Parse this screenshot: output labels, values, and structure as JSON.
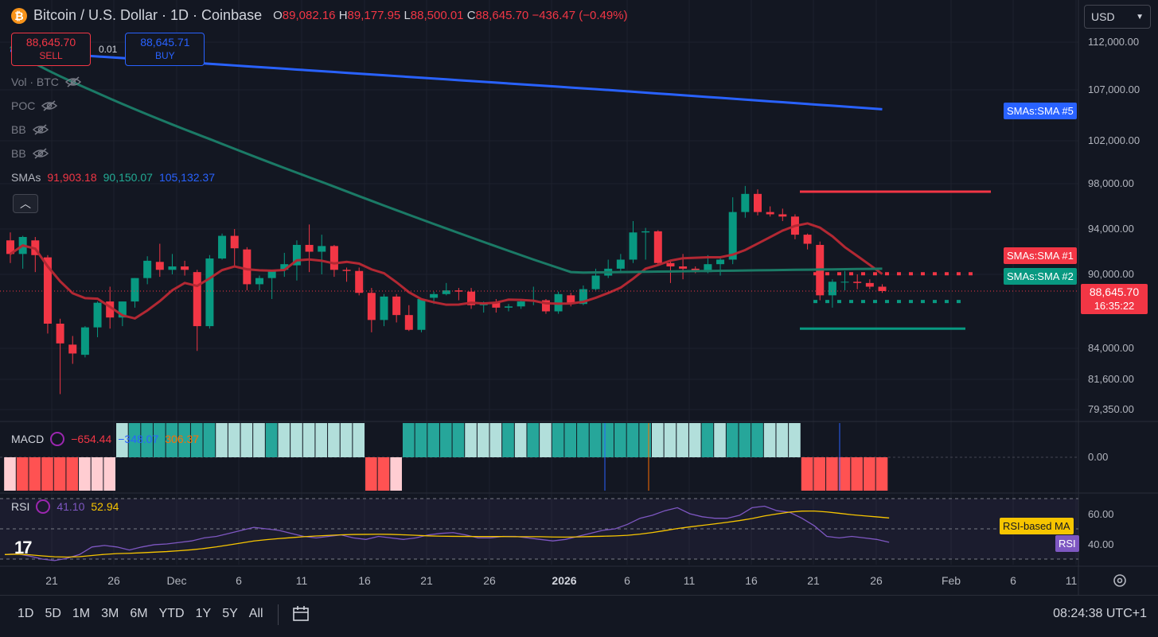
{
  "header": {
    "title": "Bitcoin / U.S. Dollar · 1D · Coinbase",
    "o_label": "O",
    "o": "89,082.16",
    "h_label": "H",
    "h": "89,177.95",
    "l_label": "L",
    "l": "88,500.01",
    "c_label": "C",
    "c": "88,645.70",
    "change": "−436.47 (−0.49%)"
  },
  "trade": {
    "sell_price": "88,645.70",
    "sell_label": "SELL",
    "spread": "0.01",
    "buy_price": "88,645.71",
    "buy_label": "BUY"
  },
  "indicators": [
    {
      "label": "Vol · BTC"
    },
    {
      "label": "POC"
    },
    {
      "label": "BB"
    },
    {
      "label": "BB"
    }
  ],
  "smas": {
    "label": "SMAs",
    "v1": "91,903.18",
    "v2": "90,150.07",
    "v3": "105,132.37"
  },
  "currency": "USD",
  "price_labels": [
    "112,000.00",
    "107,000.00",
    "102,000.00",
    "98,000.00",
    "94,000.00",
    "90,000.00",
    "84,000.00",
    "81,600.00",
    "79,350.00"
  ],
  "tags": {
    "sma5": "SMAs:SMA #5",
    "sma1": "SMAs:SMA #1",
    "sma2": "SMAs:SMA #2"
  },
  "current": {
    "price": "88,645.70",
    "countdown": "16:35:22"
  },
  "macd": {
    "label": "MACD",
    "v1": "−654.44",
    "v2": "−348.07",
    "v3": "306.37",
    "zero": "0.00"
  },
  "rsi": {
    "label": "RSI",
    "v1": "41.10",
    "v2": "52.94",
    "l60": "60.00",
    "l40": "40.00",
    "ma_tag": "RSI-based MA",
    "rsi_tag": "RSI"
  },
  "time_labels": [
    "21",
    "26",
    "Dec",
    "6",
    "11",
    "16",
    "21",
    "26",
    "2026",
    "6",
    "11",
    "16",
    "21",
    "26",
    "Feb",
    "6",
    "11"
  ],
  "periods": [
    "1D",
    "5D",
    "1M",
    "3M",
    "6M",
    "YTD",
    "1Y",
    "5Y",
    "All"
  ],
  "clock": "08:24:38 UTC+1",
  "colors": {
    "up": "#089981",
    "down": "#f23645",
    "sma5": "#2962ff",
    "sma1": "#b22833",
    "sma2": "#1b7a66",
    "rsi": "#7e57c2",
    "rsima": "#f7c500",
    "bg": "#131722"
  },
  "chart_data": {
    "type": "candlestick",
    "price_axis": [
      79350,
      81600,
      84000,
      90000,
      94000,
      98000,
      102000,
      107000,
      112000
    ],
    "candles": [
      {
        "o": 93000,
        "h": 93700,
        "l": 91000,
        "c": 91800
      },
      {
        "o": 91800,
        "h": 93400,
        "l": 90500,
        "c": 93300
      },
      {
        "o": 93000,
        "h": 93300,
        "l": 90200,
        "c": 91700
      },
      {
        "o": 91500,
        "h": 91700,
        "l": 85200,
        "c": 86000
      },
      {
        "o": 86000,
        "h": 86400,
        "l": 80500,
        "c": 84400
      },
      {
        "o": 84300,
        "h": 85000,
        "l": 82800,
        "c": 83600
      },
      {
        "o": 83500,
        "h": 85800,
        "l": 83300,
        "c": 85700
      },
      {
        "o": 85700,
        "h": 87800,
        "l": 84900,
        "c": 87700
      },
      {
        "o": 87800,
        "h": 89000,
        "l": 85600,
        "c": 86500
      },
      {
        "o": 86500,
        "h": 87800,
        "l": 85800,
        "c": 87800
      },
      {
        "o": 87800,
        "h": 89700,
        "l": 87300,
        "c": 89700
      },
      {
        "o": 89700,
        "h": 91600,
        "l": 89200,
        "c": 91200
      },
      {
        "o": 91100,
        "h": 92700,
        "l": 89800,
        "c": 90400
      },
      {
        "o": 90400,
        "h": 91800,
        "l": 90000,
        "c": 90700
      },
      {
        "o": 90700,
        "h": 91200,
        "l": 89900,
        "c": 90400
      },
      {
        "o": 90200,
        "h": 90400,
        "l": 83800,
        "c": 85800
      },
      {
        "o": 85800,
        "h": 91700,
        "l": 85600,
        "c": 91400
      },
      {
        "o": 91400,
        "h": 93600,
        "l": 91300,
        "c": 93400
      },
      {
        "o": 93400,
        "h": 94000,
        "l": 90600,
        "c": 92300
      },
      {
        "o": 92200,
        "h": 92400,
        "l": 88700,
        "c": 89200
      },
      {
        "o": 89200,
        "h": 89900,
        "l": 88700,
        "c": 89700
      },
      {
        "o": 89700,
        "h": 90400,
        "l": 88000,
        "c": 90400
      },
      {
        "o": 90400,
        "h": 91900,
        "l": 89800,
        "c": 90900
      },
      {
        "o": 90800,
        "h": 93000,
        "l": 89500,
        "c": 92600
      },
      {
        "o": 92600,
        "h": 94400,
        "l": 90200,
        "c": 92000
      },
      {
        "o": 92000,
        "h": 93500,
        "l": 90000,
        "c": 92500
      },
      {
        "o": 92500,
        "h": 92600,
        "l": 89800,
        "c": 90400
      },
      {
        "o": 90400,
        "h": 90600,
        "l": 89400,
        "c": 90300
      },
      {
        "o": 90300,
        "h": 90600,
        "l": 88300,
        "c": 88500
      },
      {
        "o": 88500,
        "h": 88900,
        "l": 85300,
        "c": 86300
      },
      {
        "o": 86300,
        "h": 88400,
        "l": 85800,
        "c": 88200
      },
      {
        "o": 88200,
        "h": 88400,
        "l": 86100,
        "c": 86700
      },
      {
        "o": 86700,
        "h": 87500,
        "l": 85400,
        "c": 85500
      },
      {
        "o": 85500,
        "h": 87900,
        "l": 85300,
        "c": 88000
      },
      {
        "o": 88100,
        "h": 88600,
        "l": 87600,
        "c": 88400
      },
      {
        "o": 88400,
        "h": 89300,
        "l": 88300,
        "c": 88700
      },
      {
        "o": 88700,
        "h": 88900,
        "l": 87900,
        "c": 88600
      },
      {
        "o": 88600,
        "h": 88900,
        "l": 87200,
        "c": 87500
      },
      {
        "o": 87500,
        "h": 87800,
        "l": 86900,
        "c": 87700
      },
      {
        "o": 87700,
        "h": 88000,
        "l": 86900,
        "c": 87300
      },
      {
        "o": 87300,
        "h": 87600,
        "l": 87000,
        "c": 87400
      },
      {
        "o": 87400,
        "h": 88000,
        "l": 87200,
        "c": 87800
      },
      {
        "o": 87800,
        "h": 89000,
        "l": 87500,
        "c": 87900
      },
      {
        "o": 87900,
        "h": 88000,
        "l": 86800,
        "c": 87000
      },
      {
        "o": 87000,
        "h": 88600,
        "l": 86800,
        "c": 88400
      },
      {
        "o": 88300,
        "h": 88500,
        "l": 87400,
        "c": 87600
      },
      {
        "o": 87600,
        "h": 89100,
        "l": 87500,
        "c": 88800
      },
      {
        "o": 88800,
        "h": 90500,
        "l": 88700,
        "c": 89900
      },
      {
        "o": 89900,
        "h": 91300,
        "l": 89700,
        "c": 90500
      },
      {
        "o": 90500,
        "h": 91800,
        "l": 90100,
        "c": 91300
      },
      {
        "o": 91300,
        "h": 94700,
        "l": 91000,
        "c": 93700
      },
      {
        "o": 93700,
        "h": 94100,
        "l": 91300,
        "c": 93800
      },
      {
        "o": 93800,
        "h": 93900,
        "l": 90800,
        "c": 91000
      },
      {
        "o": 91000,
        "h": 91300,
        "l": 89300,
        "c": 90700
      },
      {
        "o": 90700,
        "h": 91800,
        "l": 89600,
        "c": 90500
      },
      {
        "o": 90500,
        "h": 90700,
        "l": 90100,
        "c": 90200
      },
      {
        "o": 90200,
        "h": 91700,
        "l": 90100,
        "c": 90900
      },
      {
        "o": 90900,
        "h": 91500,
        "l": 89900,
        "c": 91300
      },
      {
        "o": 91300,
        "h": 96800,
        "l": 90900,
        "c": 95500
      },
      {
        "o": 95500,
        "h": 97800,
        "l": 95000,
        "c": 97100
      },
      {
        "o": 97100,
        "h": 97500,
        "l": 95200,
        "c": 95500
      },
      {
        "o": 95500,
        "h": 96000,
        "l": 95100,
        "c": 95300
      },
      {
        "o": 95300,
        "h": 95800,
        "l": 94700,
        "c": 95100
      },
      {
        "o": 95100,
        "h": 95300,
        "l": 93100,
        "c": 93500
      },
      {
        "o": 93500,
        "h": 93600,
        "l": 92200,
        "c": 92700
      },
      {
        "o": 92600,
        "h": 92900,
        "l": 87900,
        "c": 88300
      },
      {
        "o": 88300,
        "h": 89600,
        "l": 87300,
        "c": 89400
      },
      {
        "o": 89400,
        "h": 90300,
        "l": 88700,
        "c": 89400
      },
      {
        "o": 89400,
        "h": 90000,
        "l": 88800,
        "c": 89300
      },
      {
        "o": 89300,
        "h": 89600,
        "l": 88800,
        "c": 89000
      },
      {
        "o": 89000,
        "h": 89200,
        "l": 88500,
        "c": 88646
      }
    ],
    "sma5": [
      111000,
      110600,
      110200,
      109800,
      109200,
      108000,
      106600,
      105100
    ],
    "sma1_levels": {
      "resistance": 97300,
      "support": 85600,
      "upper_dotted": 90050,
      "lower_dotted": 87800
    },
    "macd_histogram_sign": "mixed",
    "rsi_levels": [
      40,
      60
    ]
  }
}
